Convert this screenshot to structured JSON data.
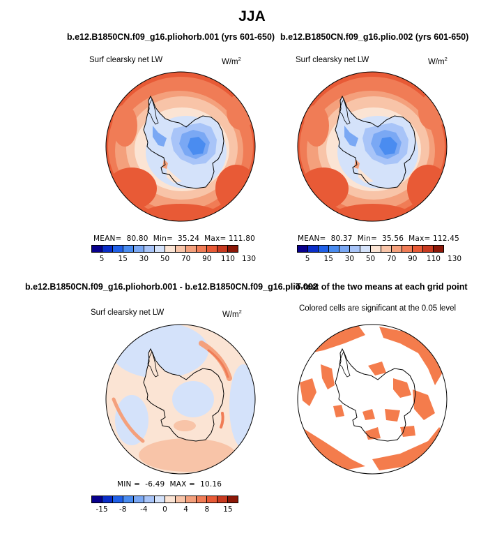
{
  "figure_title": "JJA",
  "panels": [
    {
      "title": "b.e12.B1850CN.f09_g16.pliohorb.001 (yrs 601-650)",
      "subtitle": "Surf clearsky net LW",
      "units": "W/m",
      "units_exp": "2",
      "stats": "MEAN=  80.80  Min=  35.24  Max= 111.80",
      "colorbar_labels": [
        "5",
        "15",
        "30",
        "50",
        "70",
        "90",
        "110",
        "130"
      ]
    },
    {
      "title": "b.e12.B1850CN.f09_g16.plio.002 (yrs 601-650)",
      "subtitle": "Surf clearsky net LW",
      "units": "W/m",
      "units_exp": "2",
      "stats": "MEAN=  80.37  Min=  35.56  Max= 112.45",
      "colorbar_labels": [
        "5",
        "15",
        "30",
        "50",
        "70",
        "90",
        "110",
        "130"
      ]
    },
    {
      "title": "b.e12.B1850CN.f09_g16.pliohorb.001 - b.e12.B1850CN.f09_g16.plio.002",
      "subtitle": "Surf clearsky net LW",
      "units": "W/m",
      "units_exp": "2",
      "stats": "MIN =  -6.49  MAX =  10.16",
      "colorbar_labels": [
        "-15",
        "-8",
        "-4",
        "0",
        "4",
        "8",
        "15"
      ]
    },
    {
      "title": "T-test of the two means at each grid point",
      "subtitle": "Colored cells are significant at the 0.05 level"
    }
  ],
  "colors": {
    "abs_scale": [
      "#08008c",
      "#0a2ec8",
      "#2060e8",
      "#4a8cf0",
      "#7aa8f4",
      "#a8c4f8",
      "#d4e2fa",
      "#fbe4d4",
      "#f8c4a8",
      "#f4a07c",
      "#f07c56",
      "#e85a36",
      "#c83a20",
      "#8c1808"
    ],
    "diff_scale": [
      "#08008c",
      "#0a2ec8",
      "#2060e8",
      "#4a8cf0",
      "#7aa8f4",
      "#a8c4f8",
      "#d4e2fa",
      "#fbe4d4",
      "#f8c4a8",
      "#f4a07c",
      "#f07c56",
      "#e85a36",
      "#c83a20",
      "#8c1808"
    ],
    "significant": "#f47c4c"
  }
}
